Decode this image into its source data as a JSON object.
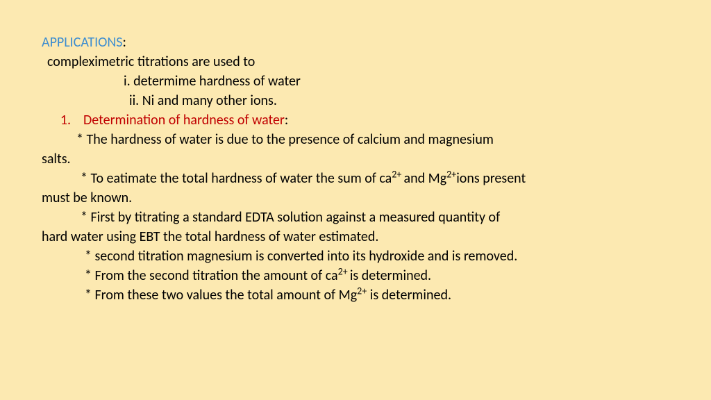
{
  "colors": {
    "background": "#fce9b1",
    "title": "#3b8cd0",
    "heading": "#c00000",
    "body": "#000000"
  },
  "typography": {
    "font_family": "Calibri, 'Segoe UI', Arial, sans-serif",
    "font_size_pt": 20,
    "line_height": 1.3
  },
  "title": "APPLICATIONS",
  "title_colon": ":",
  "intro": "compleximetric titrations are used to",
  "sub_i": "i. determime hardness of water",
  "sub_ii": "ii. Ni and many other ions.",
  "section_num": "1.",
  "section_heading": "Determination of hardness of water",
  "section_colon": ":",
  "b1_line1": "* The hardness of water is due to the presence of calcium and magnesium",
  "b1_line2": "salts.",
  "b2_pre": "* To eatimate the total hardness of water the sum of ca",
  "b2_sup1": "2+ ",
  "b2_mid": "and Mg",
  "b2_sup2": "2+",
  "b2_post": "ions present",
  "b2_line2": "must be known.",
  "b3_line1": "* First by titrating a standard EDTA solution against a measured quantity of",
  "b3_line2": "hard water using EBT the total hardness of water estimated.",
  "b4": "* second titration magnesium is converted into its hydroxide and is removed.",
  "b5_pre": "*  From the second titration the amount of ca",
  "b5_sup": "2+ ",
  "b5_post": "is determined.",
  "b6_pre": "*  From these two values the total amount of Mg",
  "b6_sup": "2+",
  "b6_post": " is determined."
}
